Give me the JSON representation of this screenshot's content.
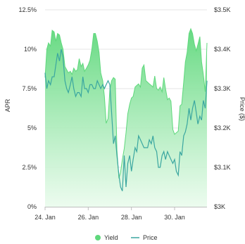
{
  "chart_data": {
    "type": "area",
    "title": "",
    "xlabel": "",
    "ylabel_left": "APR",
    "ylabel_right": "Price ($)",
    "x_ticks": [
      "24. Jan",
      "26. Jan",
      "28. Jan",
      "30. Jan"
    ],
    "x_tick_days": [
      24,
      26,
      28,
      30
    ],
    "x_range_days": [
      24,
      31.5
    ],
    "y_left_ticks": [
      "0%",
      "2.5%",
      "5%",
      "7.5%",
      "10%",
      "12.5%"
    ],
    "y_left_range": [
      0,
      12.5
    ],
    "y_right_ticks": [
      "$3K",
      "$3.1K",
      "$3.2K",
      "$3.3K",
      "$3.4K",
      "$3.5K"
    ],
    "y_right_range": [
      3000,
      3500
    ],
    "grid": true,
    "legend_position": "bottom",
    "colors": {
      "yield_line": "#5fd87c",
      "yield_fill_top": "#5fd87c",
      "yield_fill_bottom": "#e9fbec",
      "price_line": "#3aa6a0",
      "grid": "#e6e6e6"
    },
    "series": [
      {
        "name": "Yield",
        "kind": "area",
        "axis": "left",
        "x": [
          24.0,
          24.08,
          24.16,
          24.25,
          24.33,
          24.42,
          24.5,
          24.58,
          24.67,
          24.75,
          24.83,
          24.92,
          25.0,
          25.08,
          25.17,
          25.25,
          25.33,
          25.42,
          25.5,
          25.58,
          25.67,
          25.75,
          25.83,
          25.92,
          26.0,
          26.08,
          26.17,
          26.25,
          26.33,
          26.42,
          26.5,
          26.58,
          26.67,
          26.75,
          26.83,
          26.92,
          27.0,
          27.08,
          27.17,
          27.25,
          27.33,
          27.42,
          27.5,
          27.58,
          27.67,
          27.75,
          27.83,
          27.92,
          28.0,
          28.08,
          28.17,
          28.25,
          28.33,
          28.42,
          28.5,
          28.58,
          28.67,
          28.75,
          28.83,
          28.92,
          29.0,
          29.08,
          29.17,
          29.25,
          29.33,
          29.42,
          29.5,
          29.58,
          29.67,
          29.75,
          29.83,
          29.92,
          30.0,
          30.08,
          30.17,
          30.25,
          30.33,
          30.42,
          30.5,
          30.58,
          30.67,
          30.75,
          30.83,
          30.92,
          31.0,
          31.08,
          31.17,
          31.25,
          31.33,
          31.42,
          31.5
        ],
        "values": [
          8.2,
          10.0,
          10.4,
          10.2,
          11.2,
          11.1,
          10.5,
          11.0,
          10.9,
          10.4,
          10.0,
          8.9,
          8.7,
          8.5,
          8.6,
          8.4,
          8.8,
          8.6,
          8.7,
          9.4,
          8.9,
          9.1,
          8.6,
          8.8,
          9.0,
          9.3,
          10.0,
          11.0,
          11.0,
          10.5,
          9.8,
          8.5,
          8.0,
          7.0,
          5.3,
          5.6,
          7.4,
          8.0,
          8.2,
          8.1,
          3.6,
          1.8,
          2.2,
          3.0,
          3.7,
          4.7,
          5.9,
          6.5,
          6.9,
          7.0,
          7.6,
          7.7,
          7.8,
          7.6,
          8.8,
          9.0,
          8.0,
          7.9,
          7.8,
          7.7,
          7.6,
          8.3,
          7.5,
          7.4,
          7.6,
          7.3,
          8.2,
          7.5,
          6.8,
          6.9,
          6.7,
          4.9,
          4.6,
          4.7,
          4.8,
          6.4,
          6.5,
          7.9,
          9.2,
          9.8,
          11.0,
          11.3,
          11.0,
          10.3,
          9.9,
          10.3,
          10.8,
          9.2,
          8.4,
          7.3,
          10.4
        ]
      },
      {
        "name": "Price",
        "kind": "line",
        "axis": "right",
        "x": [
          24.0,
          24.08,
          24.16,
          24.25,
          24.33,
          24.42,
          24.5,
          24.58,
          24.67,
          24.75,
          24.83,
          24.92,
          25.0,
          25.08,
          25.17,
          25.25,
          25.33,
          25.42,
          25.5,
          25.58,
          25.67,
          25.75,
          25.83,
          25.92,
          26.0,
          26.08,
          26.17,
          26.25,
          26.33,
          26.42,
          26.5,
          26.58,
          26.67,
          26.75,
          26.83,
          26.92,
          27.0,
          27.08,
          27.17,
          27.25,
          27.33,
          27.42,
          27.5,
          27.58,
          27.67,
          27.75,
          27.83,
          27.92,
          28.0,
          28.08,
          28.17,
          28.25,
          28.33,
          28.42,
          28.5,
          28.58,
          28.67,
          28.75,
          28.83,
          28.92,
          29.0,
          29.08,
          29.17,
          29.25,
          29.33,
          29.42,
          29.5,
          29.58,
          29.67,
          29.75,
          29.83,
          29.92,
          30.0,
          30.08,
          30.17,
          30.25,
          30.33,
          30.42,
          30.5,
          30.58,
          30.67,
          30.75,
          30.83,
          30.92,
          31.0,
          31.08,
          31.17,
          31.25,
          31.33,
          31.42,
          31.5
        ],
        "values": [
          3340,
          3300,
          3320,
          3310,
          3330,
          3330,
          3360,
          3390,
          3370,
          3400,
          3380,
          3320,
          3300,
          3290,
          3310,
          3330,
          3300,
          3280,
          3290,
          3290,
          3280,
          3330,
          3300,
          3300,
          3290,
          3310,
          3310,
          3300,
          3300,
          3320,
          3310,
          3300,
          3310,
          3300,
          3310,
          3320,
          3310,
          3240,
          3160,
          3180,
          3130,
          3080,
          3050,
          3040,
          3130,
          3050,
          3110,
          3130,
          3090,
          3120,
          3150,
          3140,
          3180,
          3170,
          3160,
          3150,
          3150,
          3150,
          3170,
          3160,
          3180,
          3150,
          3140,
          3100,
          3100,
          3130,
          3140,
          3120,
          3140,
          3130,
          3120,
          3110,
          3120,
          3090,
          3080,
          3140,
          3130,
          3180,
          3190,
          3210,
          3250,
          3220,
          3250,
          3270,
          3240,
          3210,
          3230,
          3220,
          3270,
          3250,
          3320
        ]
      }
    ]
  },
  "legend": {
    "items": [
      {
        "label": "Yield",
        "marker": "circle"
      },
      {
        "label": "Price",
        "marker": "line"
      }
    ]
  }
}
